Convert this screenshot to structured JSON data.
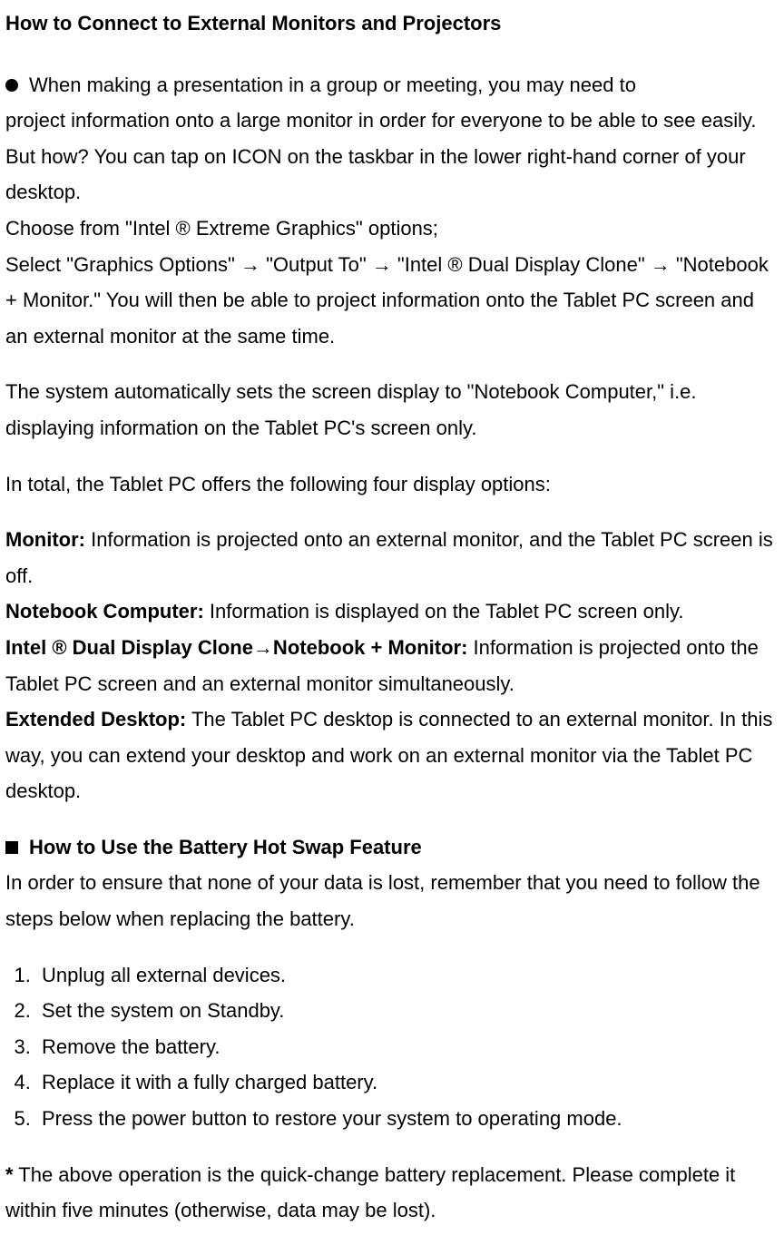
{
  "title": "How to Connect to External Monitors and Projectors",
  "intro": {
    "line1": "When making a presentation in a group or meeting, you may need to",
    "line2": "project information onto a large monitor in order for everyone to be able to see easily.    But how? You can tap on ICON on the taskbar in the lower right-hand corner of your desktop.",
    "line3": "Choose from \"Intel ® Extreme Graphics\" options;",
    "line4": "Select \"Graphics Options\" → \"Output To\" → \"Intel ® Dual Display Clone\" → \"Notebook + Monitor.\"    You will then be able to project information onto the Tablet PC screen and an external monitor at the same time."
  },
  "auto_note": "The system automatically sets the screen display to \"Notebook Computer,\" i.e. displaying information on the Tablet PC's screen only.",
  "options_intro": "In total, the Tablet PC offers the following four display options:",
  "opt1": {
    "label": "Monitor:",
    "text": " Information is projected onto an external monitor, and the Tablet PC screen is off."
  },
  "opt2": {
    "label": "Notebook Computer:",
    "text": " Information is displayed on the Tablet PC screen only."
  },
  "opt3": {
    "label": "Intel ® Dual Display Clone→Notebook + Monitor:",
    "text": " Information is projected onto the Tablet PC screen and an external monitor simultaneously."
  },
  "opt4": {
    "label": "Extended Desktop:",
    "text": " The Tablet PC desktop is connected to an external monitor.    In this way, you can extend your desktop and work on an external monitor via the Tablet PC desktop."
  },
  "battery": {
    "heading": "How to Use the Battery Hot Swap Feature",
    "intro": "In order to ensure that none of your data is lost, remember that you need to follow the steps below when replacing the battery.",
    "steps": [
      "Unplug all external devices.",
      "Set the system on Standby.",
      "Remove the battery.",
      "Replace it with a fully charged battery.",
      "Press the power button to restore your system to operating mode."
    ],
    "note_prefix": "*",
    "note": " The above operation is the quick-change battery replacement.    Please complete it within five minutes (otherwise, data may be lost)."
  }
}
